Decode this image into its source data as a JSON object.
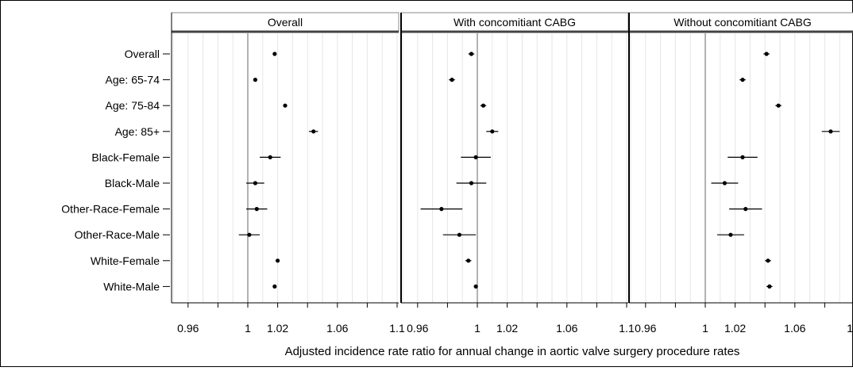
{
  "chart_data": {
    "type": "forest",
    "xlabel": "Adjusted incidence rate ratio for annual change in aortic valve surgery procedure rates",
    "xlim": [
      0.95,
      1.1
    ],
    "xticks": [
      0.96,
      1,
      1.02,
      1.06,
      1.1
    ],
    "xtick_labels": [
      "0.96",
      "1",
      "1.02",
      "1.06",
      "1.1"
    ],
    "reference_line": 1,
    "grid": true,
    "categories": [
      "Overall",
      "Age: 65-74",
      "Age: 75-84",
      "Age: 85+",
      "Black-Female",
      "Black-Male",
      "Other-Race-Female",
      "Other-Race-Male",
      "White-Female",
      "White-Male"
    ],
    "panels": [
      {
        "title": "Overall",
        "estimates": [
          1.018,
          1.005,
          1.025,
          1.044,
          1.015,
          1.005,
          1.006,
          1.001,
          1.02,
          1.018
        ],
        "lower": [
          1.017,
          1.004,
          1.024,
          1.041,
          1.008,
          0.999,
          0.999,
          0.994,
          1.019,
          1.017
        ],
        "upper": [
          1.019,
          1.006,
          1.026,
          1.047,
          1.022,
          1.011,
          1.013,
          1.008,
          1.021,
          1.019
        ]
      },
      {
        "title": "With concomitiant CABG",
        "estimates": [
          0.996,
          0.983,
          1.004,
          1.01,
          0.999,
          0.996,
          0.976,
          0.988,
          0.994,
          0.999
        ],
        "lower": [
          0.994,
          0.981,
          1.002,
          1.006,
          0.989,
          0.986,
          0.962,
          0.977,
          0.992,
          0.998
        ],
        "upper": [
          0.998,
          0.985,
          1.006,
          1.014,
          1.009,
          1.006,
          0.99,
          0.999,
          0.996,
          1.0
        ]
      },
      {
        "title": "Without concomitiant CABG",
        "estimates": [
          1.041,
          1.025,
          1.049,
          1.084,
          1.025,
          1.013,
          1.027,
          1.017,
          1.042,
          1.043
        ],
        "lower": [
          1.039,
          1.023,
          1.047,
          1.078,
          1.015,
          1.004,
          1.016,
          1.008,
          1.04,
          1.041
        ],
        "upper": [
          1.043,
          1.027,
          1.051,
          1.09,
          1.035,
          1.022,
          1.038,
          1.026,
          1.044,
          1.045
        ]
      }
    ]
  },
  "colors": {
    "point": "#000000",
    "whisker": "#000000",
    "reference_line": "#808080",
    "gridline": "#e6e6e6",
    "header_bg": "#ffffff",
    "frame": "#000000"
  }
}
